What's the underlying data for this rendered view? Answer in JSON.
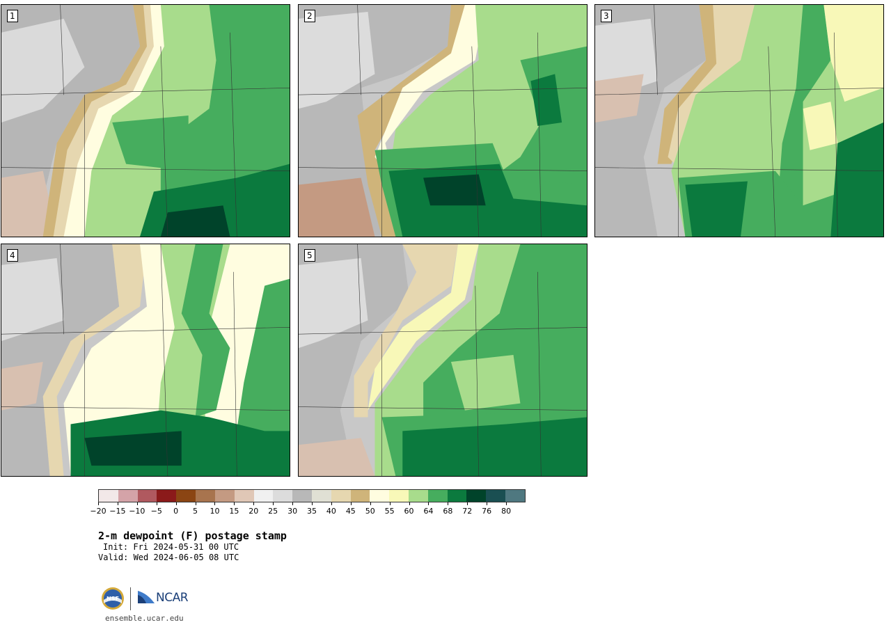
{
  "panels": [
    {
      "label": "1"
    },
    {
      "label": "2"
    },
    {
      "label": "3"
    },
    {
      "label": "4"
    },
    {
      "label": "5"
    }
  ],
  "colorbar": {
    "colors": [
      "#f2e8e8",
      "#d4a3a8",
      "#b0595f",
      "#8b1a1a",
      "#8b4513",
      "#a8744e",
      "#c49a82",
      "#e0c7b6",
      "#f0f0f0",
      "#dcdcdc",
      "#b8b8b8",
      "#e0e0d4",
      "#e6d7b0",
      "#cfb47a",
      "#fffde0",
      "#f8f8b8",
      "#a8dc8c",
      "#46ad5e",
      "#0b7a3e",
      "#00432a",
      "#1a4f52",
      "#4f7880"
    ],
    "tick_labels": [
      "−20",
      "−15",
      "−10",
      "−5",
      "0",
      "5",
      "10",
      "15",
      "20",
      "25",
      "30",
      "35",
      "40",
      "45",
      "50",
      "55",
      "60",
      "64",
      "68",
      "72",
      "76",
      "80"
    ]
  },
  "title": "2-m dewpoint (F) postage stamp",
  "init": "Init: Fri 2024-05-31 00 UTC",
  "valid": "Valid: Wed 2024-06-05 08 UTC",
  "logos": {
    "ncar_text": "NCAR"
  },
  "url": "ensemble.ucar.edu"
}
